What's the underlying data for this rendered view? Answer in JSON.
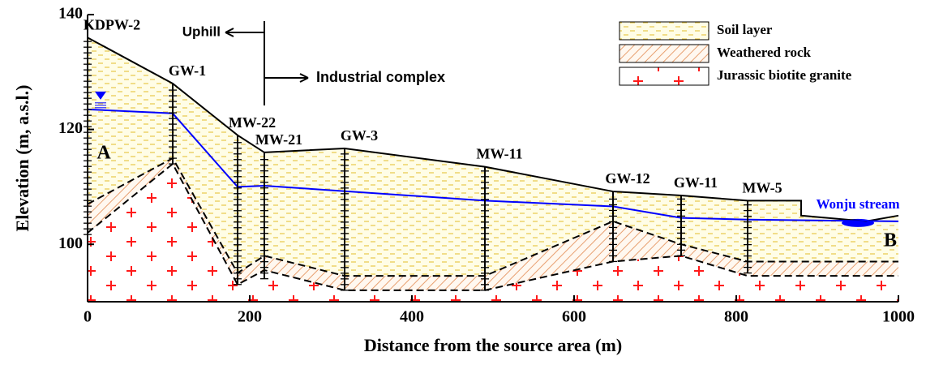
{
  "chart_data": {
    "type": "cross-section",
    "xlabel": "Distance from the source area (m)",
    "ylabel": "Elevation (m, a.s.l.)",
    "xlim": [
      0,
      1000
    ],
    "ylim": [
      90,
      140
    ],
    "xticks": [
      0,
      200,
      400,
      600,
      800,
      1000
    ],
    "yticks": [
      100,
      120,
      140
    ],
    "layers": [
      {
        "name": "Soil layer",
        "color": "#e8c84a"
      },
      {
        "name": "Weathered rock",
        "color": "#e8a070"
      },
      {
        "name": "Jurassic biotite granite",
        "color": "#ff1a1a"
      }
    ],
    "ground_surface": {
      "color": "#000000",
      "dashed": false,
      "x": [
        0,
        105,
        185,
        218,
        317,
        490,
        648,
        732,
        814,
        880,
        880,
        960,
        1000
      ],
      "values": [
        136,
        128,
        119,
        116,
        116.7,
        113.5,
        109.2,
        108.5,
        107.6,
        107.6,
        105,
        104,
        105
      ]
    },
    "water_table": {
      "color": "#0000ff",
      "dashed": false,
      "x": [
        0,
        105,
        185,
        218,
        490,
        648,
        732,
        814,
        1000
      ],
      "values": [
        123.5,
        122.8,
        110,
        110.2,
        107.6,
        106.6,
        104.6,
        104.3,
        104
      ]
    },
    "weathered_rock_top": {
      "color": "#000000",
      "dashed": true,
      "x": [
        0,
        105,
        185,
        218,
        317,
        490,
        648,
        732,
        814,
        1000
      ],
      "values": [
        107,
        115,
        95,
        98,
        94.5,
        94.5,
        104,
        100,
        97,
        97
      ]
    },
    "granite_top": {
      "color": "#000000",
      "dashed": true,
      "x": [
        0,
        105,
        185,
        218,
        317,
        490,
        648,
        732,
        814,
        1000
      ],
      "values": [
        102,
        114,
        93,
        95.5,
        92,
        92,
        97,
        98,
        94.5,
        94.5
      ]
    },
    "wells": [
      {
        "label": "KDPW-2",
        "x": 0,
        "top": 136,
        "bottom": 101.7
      },
      {
        "label": "GW-1",
        "x": 105,
        "top": 128,
        "bottom": 114
      },
      {
        "label": "MW-22",
        "x": 185,
        "top": 119,
        "bottom": 93
      },
      {
        "label": "MW-21",
        "x": 218,
        "top": 116,
        "bottom": 94
      },
      {
        "label": "GW-3",
        "x": 317,
        "top": 116.7,
        "bottom": 92
      },
      {
        "label": "MW-11",
        "x": 490,
        "top": 113.5,
        "bottom": 92
      },
      {
        "label": "GW-12",
        "x": 648,
        "top": 109.2,
        "bottom": 97
      },
      {
        "label": "GW-11",
        "x": 732,
        "top": 108.5,
        "bottom": 98
      },
      {
        "label": "MW-5",
        "x": 814,
        "top": 107.6,
        "bottom": 95
      }
    ],
    "annotations": [
      "Uphill",
      "Industrial complex",
      "A",
      "B",
      "Wonju stream"
    ]
  }
}
